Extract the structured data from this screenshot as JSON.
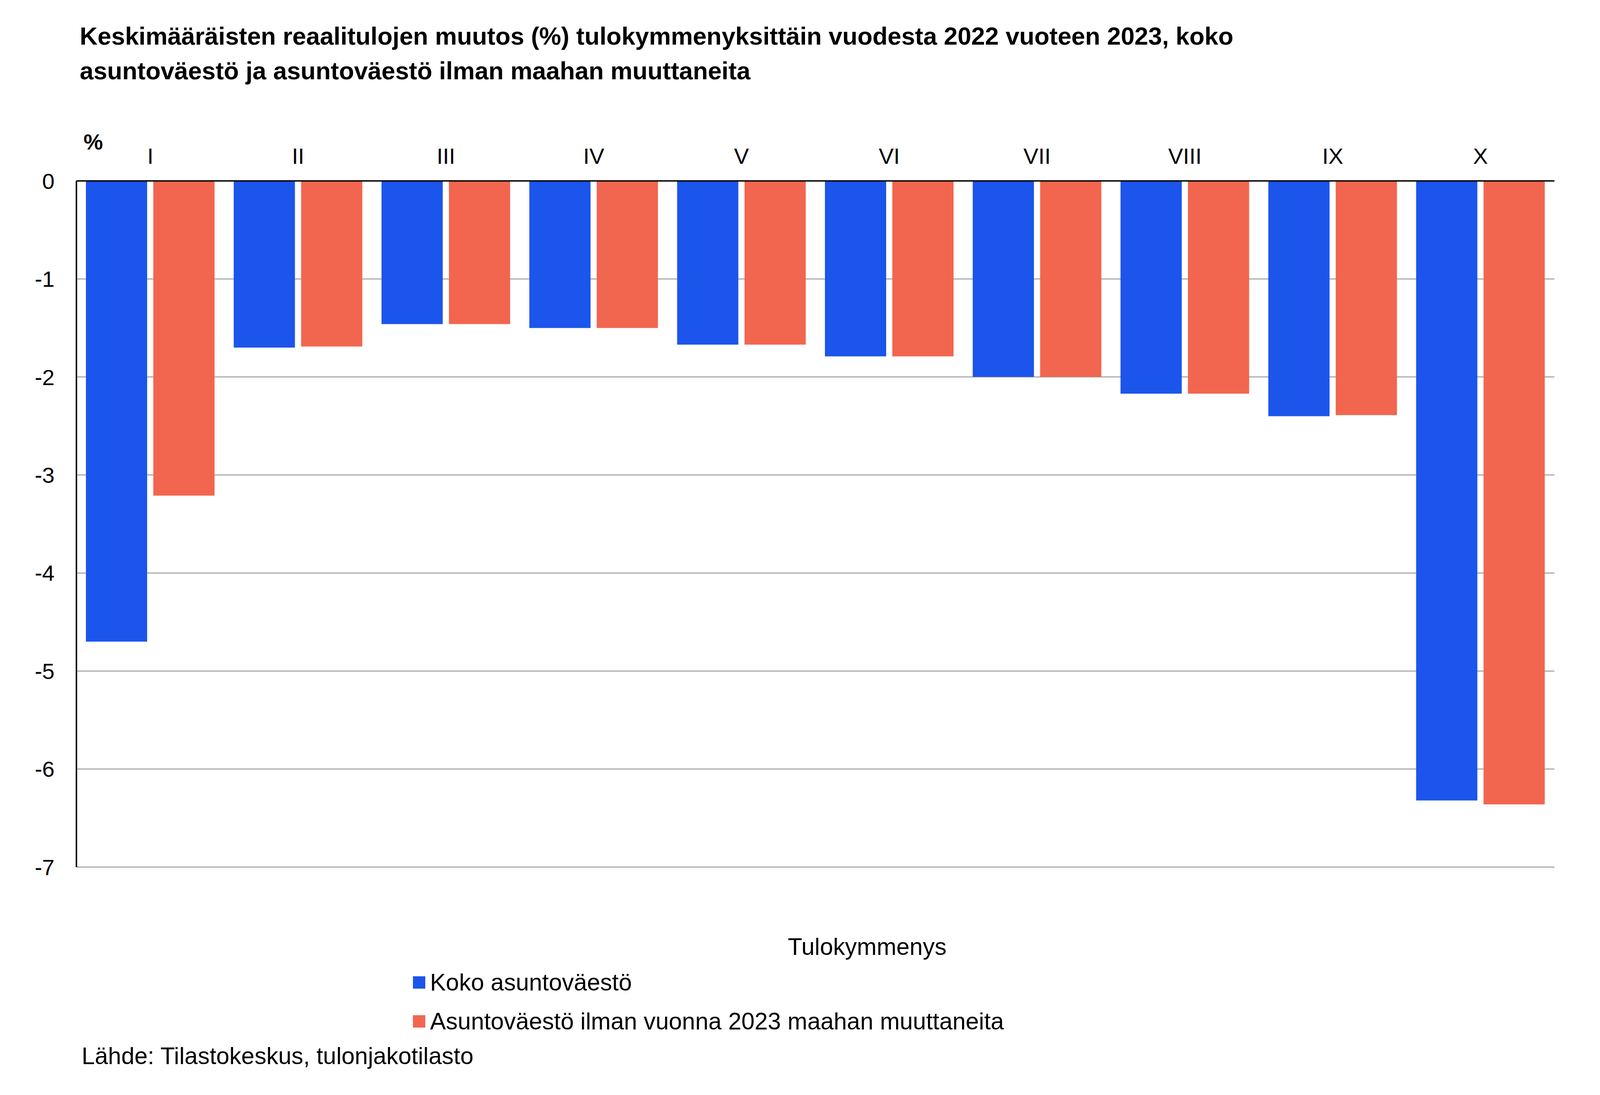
{
  "chart_data": {
    "type": "bar",
    "title": "Keskimääräisten reaalitulojen muutos (%) tulokymmenyksittäin vuodesta 2022 vuoteen 2023, koko asuntoväestö ja asuntoväestö ilman maahan muuttaneita",
    "xlabel": "Tulokymmenys",
    "ylabel": "%",
    "source": "Lähde: Tilastokeskus, tulonjakotilasto",
    "categories": [
      "I",
      "II",
      "III",
      "IV",
      "V",
      "VI",
      "VII",
      "VIII",
      "IX",
      "X"
    ],
    "series": [
      {
        "name": "Koko asuntoväestö",
        "color": "#1c55ec",
        "values": [
          -4.7,
          -1.7,
          -1.46,
          -1.5,
          -1.67,
          -1.79,
          -2.0,
          -2.17,
          -2.4,
          -6.32
        ]
      },
      {
        "name": "Asuntoväestö ilman vuonna 2023 maahan muuttaneita",
        "color": "#f2664f",
        "values": [
          -3.21,
          -1.69,
          -1.46,
          -1.5,
          -1.67,
          -1.79,
          -2.0,
          -2.17,
          -2.39,
          -6.36
        ]
      }
    ],
    "ylim": [
      -7,
      0
    ],
    "yticks": [
      0,
      -1,
      -2,
      -3,
      -4,
      -5,
      -6,
      -7
    ],
    "grid": true,
    "legend": "bottom"
  }
}
